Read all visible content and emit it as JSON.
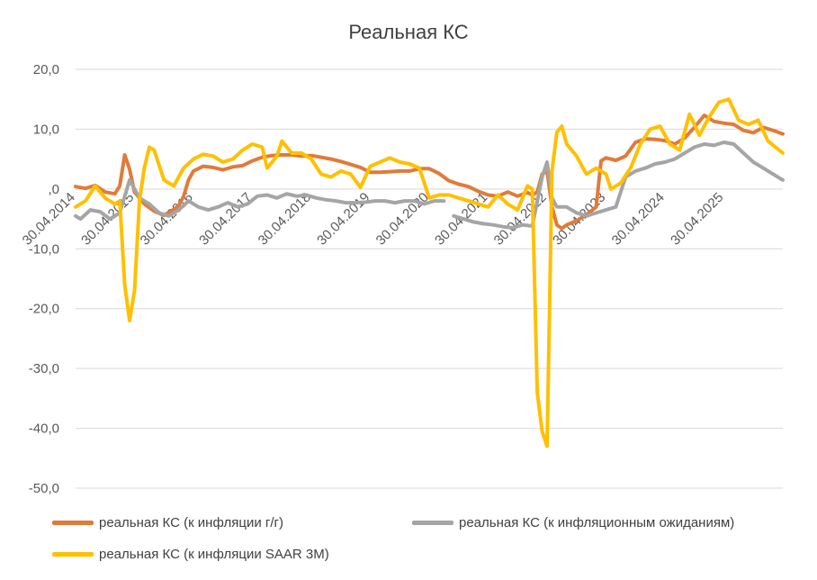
{
  "chart_data": {
    "type": "line",
    "title": "Реальная КС",
    "xlabel": "",
    "ylabel": "",
    "ylim": [
      -50,
      20
    ],
    "y_ticks": [
      20,
      10,
      0,
      -10,
      -20,
      -30,
      -40,
      -50
    ],
    "y_tick_labels": [
      "20,0",
      "10,0",
      ",0",
      "-10,0",
      "-20,0",
      "-30,0",
      "-40,0",
      "-50,0"
    ],
    "x_range": [
      "2014-04",
      "2026-04"
    ],
    "x_tick_labels": [
      "30.04.2014",
      "30.04.2015",
      "30.04.2016",
      "30.04.2017",
      "30.04.2018",
      "30.04.2019",
      "30.04.2020",
      "30.04.2021",
      "30.04.2022",
      "30.04.2023",
      "30.04.2024",
      "30.04.2025"
    ],
    "grid": "horizontal",
    "legend_position": "bottom",
    "series": [
      {
        "name": "реальная КС (к инфляции г/г)",
        "color": "#E07B39",
        "points": [
          [
            "2014-04",
            0.4
          ],
          [
            "2014-06",
            0.1
          ],
          [
            "2014-08",
            0.6
          ],
          [
            "2014-10",
            -0.5
          ],
          [
            "2014-12",
            -0.8
          ],
          [
            "2015-01",
            0.5
          ],
          [
            "2015-02",
            5.7
          ],
          [
            "2015-03",
            3.3
          ],
          [
            "2015-04",
            -0.5
          ],
          [
            "2015-06",
            -2.5
          ],
          [
            "2015-08",
            -3.7
          ],
          [
            "2015-10",
            -4.4
          ],
          [
            "2015-12",
            -3.4
          ],
          [
            "2016-01",
            -2.8
          ],
          [
            "2016-02",
            -1.2
          ],
          [
            "2016-03",
            1.5
          ],
          [
            "2016-04",
            3.0
          ],
          [
            "2016-06",
            3.8
          ],
          [
            "2016-08",
            3.6
          ],
          [
            "2016-10",
            3.2
          ],
          [
            "2016-12",
            3.7
          ],
          [
            "2017-02",
            3.9
          ],
          [
            "2017-04",
            4.7
          ],
          [
            "2017-06",
            5.3
          ],
          [
            "2017-08",
            5.6
          ],
          [
            "2017-10",
            5.7
          ],
          [
            "2017-12",
            5.7
          ],
          [
            "2018-02",
            5.5
          ],
          [
            "2018-04",
            5.6
          ],
          [
            "2018-06",
            5.3
          ],
          [
            "2018-08",
            5.0
          ],
          [
            "2018-10",
            4.6
          ],
          [
            "2018-12",
            4.1
          ],
          [
            "2019-02",
            3.6
          ],
          [
            "2019-04",
            2.8
          ],
          [
            "2019-06",
            2.8
          ],
          [
            "2019-08",
            2.9
          ],
          [
            "2019-10",
            3.0
          ],
          [
            "2019-12",
            3.0
          ],
          [
            "2020-02",
            3.4
          ],
          [
            "2020-04",
            3.4
          ],
          [
            "2020-06",
            2.6
          ],
          [
            "2020-08",
            1.4
          ],
          [
            "2020-10",
            0.8
          ],
          [
            "2020-12",
            0.4
          ],
          [
            "2021-02",
            -0.4
          ],
          [
            "2021-04",
            -1.0
          ],
          [
            "2021-06",
            -1.2
          ],
          [
            "2021-08",
            -0.5
          ],
          [
            "2021-10",
            -1.2
          ],
          [
            "2021-12",
            -0.6
          ],
          [
            "2022-01",
            -1.0
          ],
          [
            "2022-02",
            -0.5
          ],
          [
            "2022-03",
            2.5
          ],
          [
            "2022-04",
            3.0
          ],
          [
            "2022-05",
            -3.0
          ],
          [
            "2022-06",
            -6.0
          ],
          [
            "2022-07",
            -6.6
          ],
          [
            "2022-08",
            -6.0
          ],
          [
            "2022-10",
            -5.3
          ],
          [
            "2022-12",
            -4.3
          ],
          [
            "2023-02",
            -3.0
          ],
          [
            "2023-03",
            4.7
          ],
          [
            "2023-04",
            5.2
          ],
          [
            "2023-06",
            4.8
          ],
          [
            "2023-08",
            5.5
          ],
          [
            "2023-10",
            7.8
          ],
          [
            "2023-12",
            8.4
          ],
          [
            "2024-02",
            8.3
          ],
          [
            "2024-04",
            8.1
          ],
          [
            "2024-06",
            7.5
          ],
          [
            "2024-08",
            8.5
          ],
          [
            "2024-10",
            10.3
          ],
          [
            "2024-12",
            12.3
          ],
          [
            "2025-02",
            11.3
          ],
          [
            "2025-04",
            11.0
          ],
          [
            "2025-06",
            10.8
          ],
          [
            "2025-08",
            9.8
          ],
          [
            "2025-10",
            9.4
          ],
          [
            "2025-12",
            10.3
          ],
          [
            "2026-02",
            9.8
          ],
          [
            "2026-04",
            9.2
          ]
        ]
      },
      {
        "name": "реальная КС (к инфляционным ожиданиям)",
        "color": "#A5A5A5",
        "segments": [
          [
            [
              "2014-04",
              -4.5
            ],
            [
              "2014-05",
              -5.0
            ],
            [
              "2014-07",
              -3.5
            ],
            [
              "2014-09",
              -3.8
            ],
            [
              "2014-11",
              -5.0
            ],
            [
              "2015-01",
              -4.0
            ],
            [
              "2015-03",
              1.5
            ],
            [
              "2015-04",
              0.0
            ],
            [
              "2015-05",
              -1.5
            ],
            [
              "2015-07",
              -2.5
            ],
            [
              "2015-09",
              -4.0
            ],
            [
              "2015-11",
              -4.5
            ],
            [
              "2016-01",
              -3.5
            ],
            [
              "2016-03",
              -2.0
            ],
            [
              "2016-05",
              -3.0
            ],
            [
              "2016-07",
              -3.5
            ],
            [
              "2016-09",
              -3.0
            ],
            [
              "2016-11",
              -2.3
            ],
            [
              "2017-01",
              -3.0
            ],
            [
              "2017-03",
              -2.5
            ],
            [
              "2017-05",
              -1.2
            ],
            [
              "2017-07",
              -1.0
            ],
            [
              "2017-09",
              -1.5
            ],
            [
              "2017-11",
              -0.8
            ],
            [
              "2018-01",
              -1.2
            ],
            [
              "2018-03",
              -1.0
            ],
            [
              "2018-05",
              -1.5
            ],
            [
              "2018-07",
              -1.8
            ],
            [
              "2018-09",
              -2.0
            ],
            [
              "2018-11",
              -2.3
            ],
            [
              "2019-01",
              -2.3
            ],
            [
              "2019-03",
              -2.2
            ],
            [
              "2019-05",
              -2.0
            ],
            [
              "2019-07",
              -2.0
            ],
            [
              "2019-09",
              -2.3
            ],
            [
              "2019-11",
              -2.0
            ],
            [
              "2020-01",
              -2.0
            ],
            [
              "2020-03",
              -2.5
            ],
            [
              "2020-05",
              -2.0
            ],
            [
              "2020-07",
              -2.0
            ]
          ],
          [
            [
              "2020-09",
              -4.5
            ],
            [
              "2020-11",
              -5.0
            ],
            [
              "2021-01",
              -5.5
            ],
            [
              "2021-03",
              -5.8
            ],
            [
              "2021-05",
              -6.0
            ],
            [
              "2021-07",
              -6.3
            ],
            [
              "2021-09",
              -6.5
            ],
            [
              "2021-11",
              -6.0
            ],
            [
              "2022-01",
              -6.2
            ],
            [
              "2022-03",
              2.0
            ],
            [
              "2022-04",
              4.5
            ],
            [
              "2022-05",
              -1.5
            ],
            [
              "2022-06",
              -3.0
            ],
            [
              "2022-08",
              -3.0
            ],
            [
              "2022-10",
              -4.0
            ],
            [
              "2022-12",
              -4.5
            ],
            [
              "2023-02",
              -4.0
            ],
            [
              "2023-04",
              -3.5
            ],
            [
              "2023-06",
              -3.0
            ],
            [
              "2023-08",
              2.0
            ],
            [
              "2023-10",
              3.0
            ],
            [
              "2023-12",
              3.5
            ],
            [
              "2024-02",
              4.2
            ],
            [
              "2024-04",
              4.5
            ],
            [
              "2024-06",
              5.0
            ],
            [
              "2024-08",
              6.0
            ],
            [
              "2024-10",
              7.0
            ],
            [
              "2024-12",
              7.5
            ],
            [
              "2025-02",
              7.3
            ],
            [
              "2025-04",
              7.8
            ],
            [
              "2025-06",
              7.5
            ],
            [
              "2025-08",
              6.0
            ],
            [
              "2025-10",
              4.5
            ],
            [
              "2025-12",
              3.5
            ],
            [
              "2026-02",
              2.5
            ],
            [
              "2026-04",
              1.5
            ]
          ]
        ]
      },
      {
        "name": "реальная КС (к инфляции SAAR 3M)",
        "color": "#FFC000",
        "points": [
          [
            "2014-04",
            -3.0
          ],
          [
            "2014-06",
            -2.0
          ],
          [
            "2014-08",
            0.5
          ],
          [
            "2014-10",
            -1.5
          ],
          [
            "2014-12",
            -2.5
          ],
          [
            "2015-01",
            -2.0
          ],
          [
            "2015-02",
            -16.0
          ],
          [
            "2015-03",
            -22.0
          ],
          [
            "2015-04",
            -17.0
          ],
          [
            "2015-05",
            -2.0
          ],
          [
            "2015-06",
            3.5
          ],
          [
            "2015-07",
            7.0
          ],
          [
            "2015-08",
            6.5
          ],
          [
            "2015-10",
            1.5
          ],
          [
            "2015-12",
            0.5
          ],
          [
            "2016-02",
            3.5
          ],
          [
            "2016-04",
            5.0
          ],
          [
            "2016-06",
            5.8
          ],
          [
            "2016-08",
            5.5
          ],
          [
            "2016-10",
            4.5
          ],
          [
            "2016-12",
            5.0
          ],
          [
            "2017-02",
            6.5
          ],
          [
            "2017-04",
            7.5
          ],
          [
            "2017-06",
            7.0
          ],
          [
            "2017-07",
            3.5
          ],
          [
            "2017-09",
            5.5
          ],
          [
            "2017-10",
            8.0
          ],
          [
            "2017-12",
            6.0
          ],
          [
            "2018-02",
            6.0
          ],
          [
            "2018-04",
            5.0
          ],
          [
            "2018-06",
            2.5
          ],
          [
            "2018-08",
            2.0
          ],
          [
            "2018-10",
            3.0
          ],
          [
            "2018-12",
            2.5
          ],
          [
            "2019-02",
            0.3
          ],
          [
            "2019-04",
            3.8
          ],
          [
            "2019-06",
            4.5
          ],
          [
            "2019-08",
            5.2
          ],
          [
            "2019-10",
            4.5
          ],
          [
            "2019-12",
            4.2
          ],
          [
            "2020-02",
            3.5
          ],
          [
            "2020-04",
            -1.5
          ],
          [
            "2020-06",
            -1.0
          ],
          [
            "2020-08",
            -1.0
          ],
          [
            "2020-10",
            -1.5
          ],
          [
            "2020-12",
            -2.0
          ],
          [
            "2021-02",
            -2.5
          ],
          [
            "2021-04",
            -3.0
          ],
          [
            "2021-06",
            -1.0
          ],
          [
            "2021-08",
            -2.5
          ],
          [
            "2021-10",
            -3.5
          ],
          [
            "2021-12",
            0.5
          ],
          [
            "2022-01",
            0.0
          ],
          [
            "2022-02",
            -34.0
          ],
          [
            "2022-03",
            -40.5
          ],
          [
            "2022-04",
            -43.0
          ],
          [
            "2022-05",
            3.0
          ],
          [
            "2022-06",
            9.5
          ],
          [
            "2022-07",
            10.5
          ],
          [
            "2022-08",
            7.5
          ],
          [
            "2022-10",
            5.5
          ],
          [
            "2022-12",
            2.5
          ],
          [
            "2023-02",
            3.5
          ],
          [
            "2023-04",
            2.5
          ],
          [
            "2023-05",
            0.0
          ],
          [
            "2023-07",
            1.0
          ],
          [
            "2023-09",
            3.5
          ],
          [
            "2023-11",
            7.5
          ],
          [
            "2024-01",
            10.0
          ],
          [
            "2024-03",
            10.5
          ],
          [
            "2024-05",
            7.5
          ],
          [
            "2024-07",
            6.5
          ],
          [
            "2024-09",
            12.5
          ],
          [
            "2024-11",
            9.0
          ],
          [
            "2025-01",
            12.0
          ],
          [
            "2025-03",
            14.5
          ],
          [
            "2025-05",
            15.0
          ],
          [
            "2025-07",
            11.5
          ],
          [
            "2025-09",
            10.8
          ],
          [
            "2025-11",
            11.5
          ],
          [
            "2026-01",
            8.0
          ],
          [
            "2026-04",
            6.0
          ]
        ]
      }
    ]
  }
}
